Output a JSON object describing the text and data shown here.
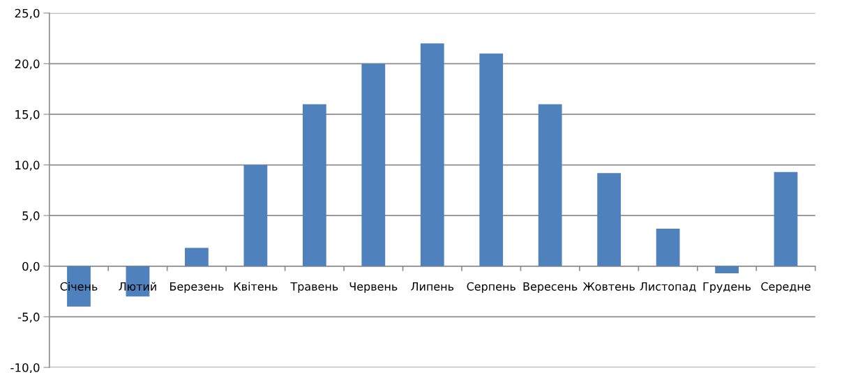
{
  "chart_data": {
    "type": "bar",
    "categories": [
      "Січень",
      "Лютий",
      "Березень",
      "Квітень",
      "Травень",
      "Червень",
      "Липень",
      "Серпень",
      "Вересень",
      "Жовтень",
      "Листопад",
      "Грудень",
      "Середне"
    ],
    "values": [
      -4.0,
      -3.0,
      1.8,
      10.0,
      16.0,
      20.0,
      22.0,
      21.0,
      16.0,
      9.2,
      3.7,
      -0.7,
      9.3
    ],
    "color": "#4f81bd",
    "ylim": [
      -10,
      25
    ],
    "yticks": [
      {
        "value": -10,
        "label": "-10,0"
      },
      {
        "value": -5,
        "label": "-5,0"
      },
      {
        "value": 0,
        "label": "0,0"
      },
      {
        "value": 5,
        "label": "5,0"
      },
      {
        "value": 10,
        "label": "10,0"
      },
      {
        "value": 15,
        "label": "15,0"
      },
      {
        "value": 20,
        "label": "20,0"
      },
      {
        "value": 25,
        "label": "25,0"
      }
    ],
    "grid": "y",
    "legend": false
  }
}
